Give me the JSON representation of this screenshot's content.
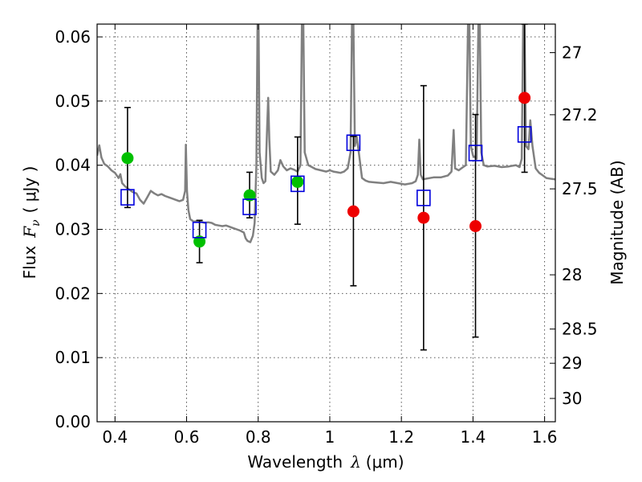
{
  "chart_data": {
    "type": "scatter",
    "title": "",
    "xlabel": "Wavelength",
    "xlabel_symbol": "λ",
    "xlabel_unit": "(μm)",
    "ylabel": "Flux",
    "ylabel_symbol": "F",
    "ylabel_symbol_sub": "ν",
    "ylabel_unit": "( μJy )",
    "y2label": "Magnitude (AB)",
    "xlim": [
      0.35,
      1.63
    ],
    "ylim": [
      0.0,
      0.062
    ],
    "grid": true,
    "x_ticks": [
      0.4,
      0.6,
      0.8,
      1.0,
      1.2,
      1.4,
      1.6
    ],
    "x_tick_labels": [
      "0.4",
      "0.6",
      "0.8",
      "1",
      "1.2",
      "1.4",
      "1.6"
    ],
    "y_ticks": [
      0.0,
      0.01,
      0.02,
      0.03,
      0.04,
      0.05,
      0.06
    ],
    "y_tick_labels": [
      "0.00",
      "0.01",
      "0.02",
      "0.03",
      "0.04",
      "0.05",
      "0.06"
    ],
    "y2_ticks": [
      27,
      27.2,
      27.5,
      28,
      28.5,
      29,
      30
    ],
    "y2_tick_labels": [
      "27",
      "27.2",
      "27.5",
      "28",
      "28.5",
      "29",
      "30"
    ],
    "colors": {
      "model": "#808080",
      "green": "#00c000",
      "red": "#ee0000",
      "box": "#0000dd",
      "errorbar": "#000000"
    },
    "series": [
      {
        "marker": "green-circle",
        "points": [
          {
            "x": 0.435,
            "y": 0.0411
          },
          {
            "x": 0.636,
            "y": 0.0281
          },
          {
            "x": 0.776,
            "y": 0.0353
          },
          {
            "x": 0.91,
            "y": 0.0374
          }
        ]
      },
      {
        "marker": "red-circle",
        "points": [
          {
            "x": 1.066,
            "y": 0.0328
          },
          {
            "x": 1.262,
            "y": 0.0318
          },
          {
            "x": 1.407,
            "y": 0.0305
          },
          {
            "x": 1.544,
            "y": 0.0505
          }
        ]
      },
      {
        "marker": "blue-open-square",
        "points": [
          {
            "x": 0.435,
            "y": 0.035
          },
          {
            "x": 0.636,
            "y": 0.0299
          },
          {
            "x": 0.776,
            "y": 0.0335
          },
          {
            "x": 0.91,
            "y": 0.0371
          },
          {
            "x": 1.066,
            "y": 0.0435
          },
          {
            "x": 1.262,
            "y": 0.0349
          },
          {
            "x": 1.407,
            "y": 0.0419
          },
          {
            "x": 1.544,
            "y": 0.0448
          }
        ]
      }
    ],
    "error_bars": [
      {
        "x": 0.435,
        "low": 0.0334,
        "high": 0.049
      },
      {
        "x": 0.636,
        "low": 0.0248,
        "high": 0.0314
      },
      {
        "x": 0.776,
        "low": 0.0318,
        "high": 0.0389
      },
      {
        "x": 0.91,
        "low": 0.0308,
        "high": 0.0444
      },
      {
        "x": 1.066,
        "low": 0.0212,
        "high": 0.0445
      },
      {
        "x": 1.262,
        "low": 0.0112,
        "high": 0.0524
      },
      {
        "x": 1.407,
        "low": 0.0132,
        "high": 0.0479
      },
      {
        "x": 1.544,
        "low": 0.0389,
        "high": 0.062
      }
    ],
    "model_spectrum": [
      [
        0.35,
        0.0415
      ],
      [
        0.356,
        0.0431
      ],
      [
        0.362,
        0.0412
      ],
      [
        0.37,
        0.0402
      ],
      [
        0.38,
        0.0398
      ],
      [
        0.39,
        0.0392
      ],
      [
        0.4,
        0.0388
      ],
      [
        0.41,
        0.038
      ],
      [
        0.415,
        0.0386
      ],
      [
        0.42,
        0.0372
      ],
      [
        0.43,
        0.0366
      ],
      [
        0.44,
        0.0362
      ],
      [
        0.45,
        0.0358
      ],
      [
        0.46,
        0.0356
      ],
      [
        0.47,
        0.0346
      ],
      [
        0.48,
        0.034
      ],
      [
        0.49,
        0.035
      ],
      [
        0.5,
        0.036
      ],
      [
        0.51,
        0.0356
      ],
      [
        0.52,
        0.0353
      ],
      [
        0.53,
        0.0355
      ],
      [
        0.54,
        0.0352
      ],
      [
        0.55,
        0.035
      ],
      [
        0.56,
        0.0348
      ],
      [
        0.57,
        0.0346
      ],
      [
        0.58,
        0.0344
      ],
      [
        0.59,
        0.0346
      ],
      [
        0.596,
        0.036
      ],
      [
        0.598,
        0.0432
      ],
      [
        0.601,
        0.036
      ],
      [
        0.605,
        0.033
      ],
      [
        0.61,
        0.0316
      ],
      [
        0.62,
        0.0312
      ],
      [
        0.63,
        0.0313
      ],
      [
        0.64,
        0.0312
      ],
      [
        0.65,
        0.031
      ],
      [
        0.66,
        0.0311
      ],
      [
        0.67,
        0.031
      ],
      [
        0.68,
        0.0307
      ],
      [
        0.69,
        0.0306
      ],
      [
        0.7,
        0.0305
      ],
      [
        0.71,
        0.0306
      ],
      [
        0.72,
        0.0304
      ],
      [
        0.73,
        0.0302
      ],
      [
        0.74,
        0.03
      ],
      [
        0.75,
        0.0298
      ],
      [
        0.76,
        0.0295
      ],
      [
        0.765,
        0.0286
      ],
      [
        0.77,
        0.0282
      ],
      [
        0.778,
        0.028
      ],
      [
        0.785,
        0.029
      ],
      [
        0.79,
        0.031
      ],
      [
        0.795,
        0.04
      ],
      [
        0.798,
        0.062
      ],
      [
        0.801,
        0.062
      ],
      [
        0.804,
        0.042
      ],
      [
        0.81,
        0.038
      ],
      [
        0.815,
        0.0372
      ],
      [
        0.82,
        0.0375
      ],
      [
        0.825,
        0.046
      ],
      [
        0.828,
        0.0505
      ],
      [
        0.831,
        0.044
      ],
      [
        0.835,
        0.039
      ],
      [
        0.845,
        0.0385
      ],
      [
        0.855,
        0.0392
      ],
      [
        0.862,
        0.0408
      ],
      [
        0.87,
        0.0398
      ],
      [
        0.88,
        0.0392
      ],
      [
        0.89,
        0.0395
      ],
      [
        0.9,
        0.0393
      ],
      [
        0.91,
        0.039
      ],
      [
        0.918,
        0.04
      ],
      [
        0.922,
        0.062
      ],
      [
        0.926,
        0.062
      ],
      [
        0.93,
        0.042
      ],
      [
        0.94,
        0.04
      ],
      [
        0.95,
        0.0397
      ],
      [
        0.96,
        0.0394
      ],
      [
        0.975,
        0.0392
      ],
      [
        0.99,
        0.039
      ],
      [
        1.0,
        0.0392
      ],
      [
        1.01,
        0.039
      ],
      [
        1.02,
        0.0389
      ],
      [
        1.03,
        0.0388
      ],
      [
        1.04,
        0.039
      ],
      [
        1.05,
        0.0395
      ],
      [
        1.058,
        0.042
      ],
      [
        1.062,
        0.062
      ],
      [
        1.066,
        0.062
      ],
      [
        1.07,
        0.043
      ],
      [
        1.075,
        0.0445
      ],
      [
        1.08,
        0.0425
      ],
      [
        1.09,
        0.038
      ],
      [
        1.1,
        0.0376
      ],
      [
        1.11,
        0.0374
      ],
      [
        1.13,
        0.0373
      ],
      [
        1.15,
        0.0372
      ],
      [
        1.17,
        0.0374
      ],
      [
        1.19,
        0.0372
      ],
      [
        1.21,
        0.037
      ],
      [
        1.23,
        0.0372
      ],
      [
        1.24,
        0.0375
      ],
      [
        1.246,
        0.0385
      ],
      [
        1.25,
        0.044
      ],
      [
        1.254,
        0.0385
      ],
      [
        1.26,
        0.0378
      ],
      [
        1.27,
        0.0379
      ],
      [
        1.29,
        0.0381
      ],
      [
        1.31,
        0.0381
      ],
      [
        1.33,
        0.0384
      ],
      [
        1.34,
        0.039
      ],
      [
        1.346,
        0.0455
      ],
      [
        1.35,
        0.0395
      ],
      [
        1.36,
        0.0392
      ],
      [
        1.37,
        0.0396
      ],
      [
        1.38,
        0.04
      ],
      [
        1.386,
        0.062
      ],
      [
        1.39,
        0.062
      ],
      [
        1.394,
        0.043
      ],
      [
        1.4,
        0.0415
      ],
      [
        1.41,
        0.041
      ],
      [
        1.415,
        0.062
      ],
      [
        1.419,
        0.062
      ],
      [
        1.423,
        0.042
      ],
      [
        1.43,
        0.04
      ],
      [
        1.44,
        0.0398
      ],
      [
        1.46,
        0.0399
      ],
      [
        1.48,
        0.0397
      ],
      [
        1.5,
        0.0398
      ],
      [
        1.52,
        0.04
      ],
      [
        1.53,
        0.0397
      ],
      [
        1.536,
        0.041
      ],
      [
        1.54,
        0.062
      ],
      [
        1.544,
        0.062
      ],
      [
        1.548,
        0.043
      ],
      [
        1.555,
        0.0425
      ],
      [
        1.56,
        0.047
      ],
      [
        1.566,
        0.043
      ],
      [
        1.575,
        0.0395
      ],
      [
        1.585,
        0.0388
      ],
      [
        1.595,
        0.0384
      ],
      [
        1.605,
        0.038
      ],
      [
        1.615,
        0.0379
      ],
      [
        1.63,
        0.0378
      ]
    ]
  }
}
